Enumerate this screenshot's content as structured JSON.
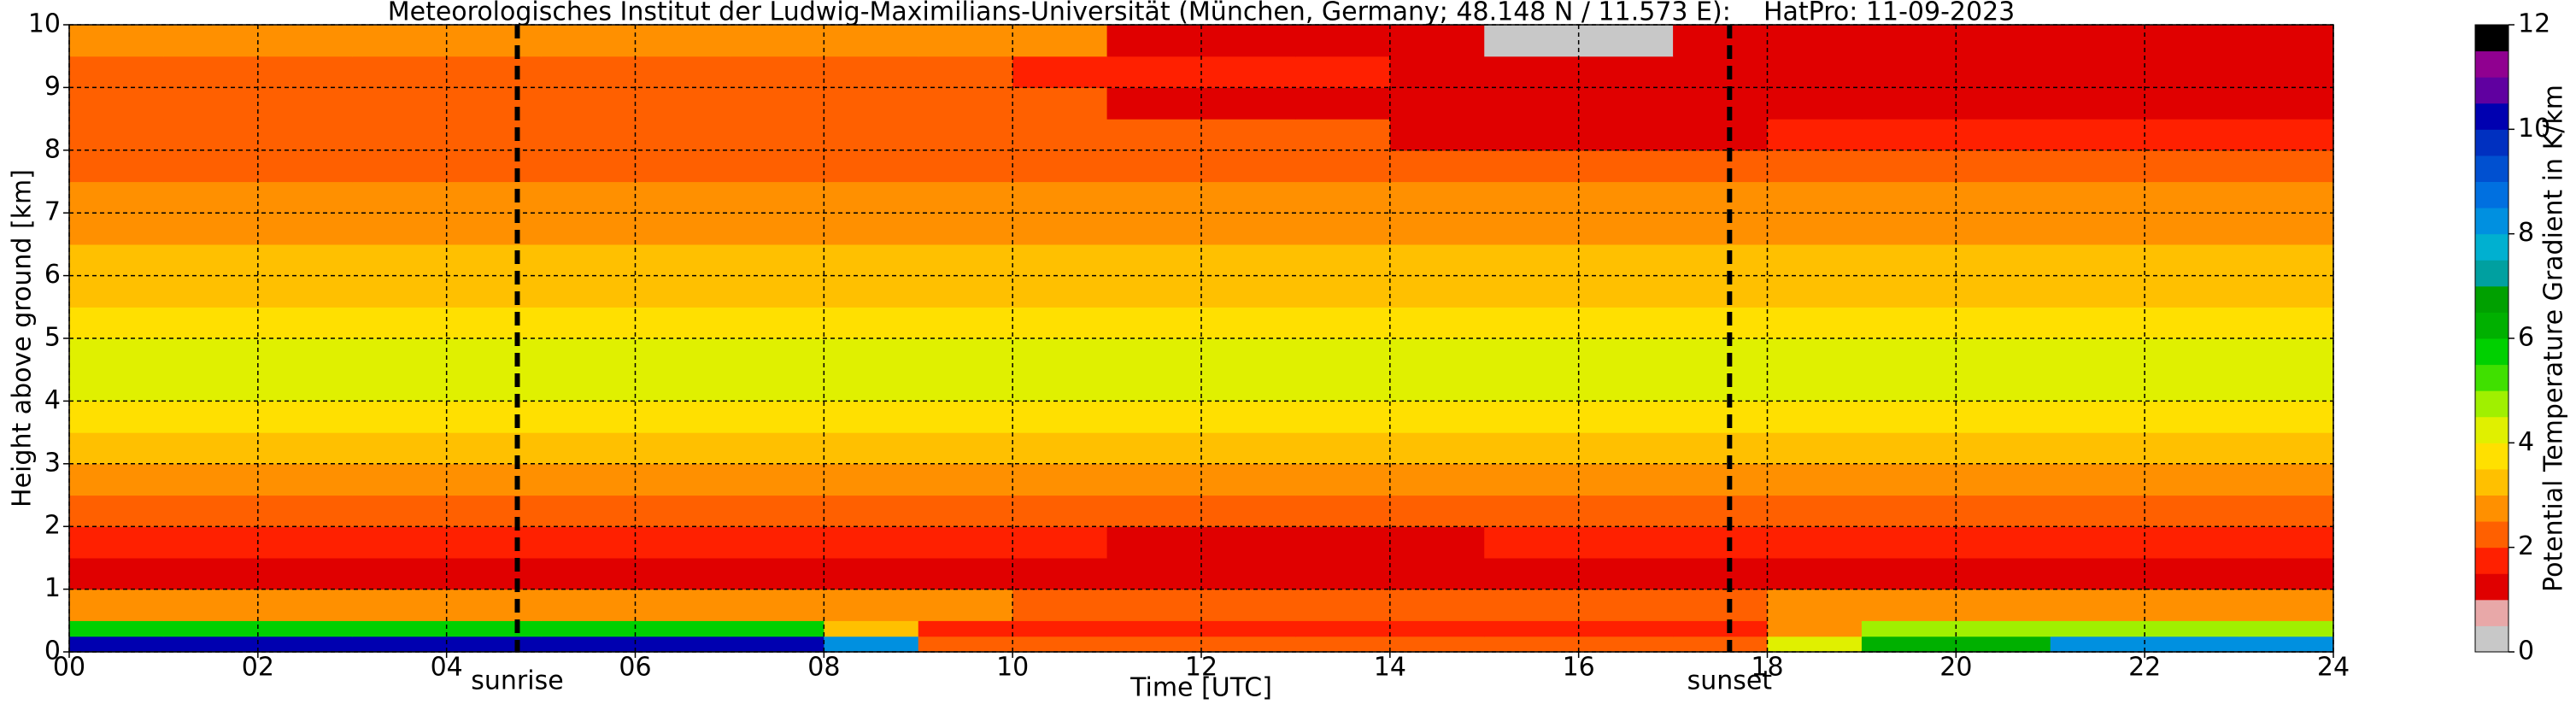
{
  "chart_data": {
    "type": "heatmap",
    "title": "Meteorologisches Institut der Ludwig-Maximilians-Universität (München, Germany; 48.148 N / 11.573 E):    HatPro: 11-09-2023",
    "xlabel": "Time [UTC]",
    "ylabel": "Height above ground [km]",
    "xlim": [
      0,
      24
    ],
    "ylim": [
      0,
      10
    ],
    "xticks": [
      {
        "value": 0,
        "label": "00"
      },
      {
        "value": 2,
        "label": "02"
      },
      {
        "value": 4,
        "label": "04"
      },
      {
        "value": 6,
        "label": "06"
      },
      {
        "value": 8,
        "label": "08"
      },
      10,
      12,
      14,
      16,
      18,
      20,
      22,
      24
    ],
    "yticks": [
      0,
      1,
      2,
      3,
      4,
      5,
      6,
      7,
      8,
      9,
      10
    ],
    "grid": true,
    "x_edges": [
      0,
      1,
      2,
      3,
      4,
      5,
      6,
      7,
      8,
      9,
      10,
      11,
      12,
      13,
      14,
      15,
      16,
      17,
      18,
      19,
      20,
      21,
      22,
      23,
      24
    ],
    "y_edges": [
      0,
      0.25,
      0.5,
      1,
      1.5,
      2,
      2.5,
      3,
      3.5,
      4,
      4.5,
      5,
      5.5,
      6,
      6.5,
      7,
      7.5,
      8,
      8.5,
      9,
      9.5,
      10
    ],
    "z": [
      [
        10,
        10,
        10,
        10,
        10,
        10,
        10,
        10,
        8,
        2,
        2,
        2,
        2,
        2,
        2,
        2,
        2,
        2,
        4,
        6,
        6,
        8,
        8,
        8
      ],
      [
        5.5,
        5.5,
        5.5,
        5.5,
        5.5,
        5.5,
        5.5,
        5.5,
        3,
        1.5,
        1.5,
        1.5,
        1.5,
        1.5,
        1.5,
        1.5,
        1.5,
        1.5,
        2.5,
        4.5,
        4.5,
        4.5,
        4.5,
        4.5
      ],
      [
        2.5,
        2.5,
        2.5,
        2.5,
        2.5,
        2.5,
        2.5,
        2.5,
        2.5,
        2.5,
        2,
        2,
        2,
        2,
        2,
        2,
        2,
        2,
        2.5,
        2.5,
        2.5,
        2.5,
        2.5,
        2.5
      ],
      [
        1.3,
        1.3,
        1.3,
        1.3,
        1.3,
        1.3,
        1.3,
        1.3,
        1.3,
        1,
        1,
        1,
        1,
        1,
        1,
        1,
        1,
        1,
        1.3,
        1.3,
        1.3,
        1.3,
        1.3,
        1.3
      ],
      [
        1.7,
        1.7,
        1.7,
        1.7,
        1.7,
        1.7,
        1.7,
        1.7,
        1.7,
        1.5,
        1.5,
        1.1,
        1.1,
        1.1,
        1.1,
        1.5,
        1.5,
        1.5,
        1.7,
        1.7,
        1.7,
        1.7,
        1.7,
        1.7
      ],
      [
        2.2,
        2.2,
        2.2,
        2.2,
        2.2,
        2.2,
        2.2,
        2.2,
        2.2,
        2.2,
        2.2,
        2.2,
        2.2,
        2.2,
        2.2,
        2.2,
        2.2,
        2.2,
        2.2,
        2.2,
        2.2,
        2.2,
        2.2,
        2.2
      ],
      [
        2.8,
        2.8,
        2.8,
        2.8,
        2.8,
        2.8,
        2.8,
        2.8,
        2.8,
        2.8,
        2.8,
        2.8,
        2.8,
        2.8,
        2.8,
        2.8,
        2.8,
        2.8,
        2.8,
        2.8,
        2.8,
        2.8,
        2.8,
        2.8
      ],
      [
        3.3,
        3.3,
        3.3,
        3.3,
        3.3,
        3.3,
        3.3,
        3.3,
        3.3,
        3.3,
        3.3,
        3.3,
        3.3,
        3.3,
        3.3,
        3.3,
        3.3,
        3.3,
        3.3,
        3.3,
        3.3,
        3.3,
        3.3,
        3.3
      ],
      [
        3.8,
        3.8,
        3.8,
        3.8,
        3.8,
        3.8,
        3.8,
        3.8,
        3.8,
        3.8,
        3.8,
        3.8,
        3.8,
        3.8,
        3.8,
        3.8,
        3.8,
        3.8,
        3.8,
        3.8,
        3.8,
        3.8,
        3.8,
        3.8
      ],
      [
        4.2,
        4.2,
        4.2,
        4.2,
        4.2,
        4.2,
        4.2,
        4.2,
        4.2,
        4.2,
        4.2,
        4.2,
        4.2,
        4.2,
        4.2,
        4.2,
        4.2,
        4.2,
        4.2,
        4.2,
        4.2,
        4.2,
        4.2,
        4.2
      ],
      [
        4.2,
        4.2,
        4.2,
        4.2,
        4.2,
        4.2,
        4.2,
        4.2,
        4.2,
        4.2,
        4.2,
        4.2,
        4.2,
        4.2,
        4.2,
        4.2,
        4.2,
        4.2,
        4.2,
        4.2,
        4.2,
        4.2,
        4.2,
        4.2
      ],
      [
        3.9,
        3.9,
        3.9,
        3.9,
        3.9,
        3.9,
        3.9,
        3.9,
        3.9,
        3.9,
        3.9,
        3.9,
        3.9,
        3.9,
        3.9,
        3.9,
        3.9,
        3.9,
        3.9,
        3.9,
        3.9,
        3.9,
        3.9,
        3.9
      ],
      [
        3.4,
        3.4,
        3.4,
        3.4,
        3.4,
        3.4,
        3.4,
        3.4,
        3.4,
        3.4,
        3.4,
        3.4,
        3.4,
        3.4,
        3.4,
        3.4,
        3.4,
        3.4,
        3.4,
        3.4,
        3.4,
        3.4,
        3.4,
        3.4
      ],
      [
        3,
        3,
        3,
        3,
        3,
        3,
        3,
        3,
        3,
        3,
        3,
        3,
        3,
        3,
        3,
        3,
        3,
        3,
        3,
        3,
        3,
        3,
        3,
        3
      ],
      [
        2.8,
        2.8,
        2.8,
        2.8,
        2.8,
        2.8,
        2.8,
        2.8,
        2.8,
        2.8,
        2.8,
        2.8,
        2.8,
        2.8,
        2.8,
        2.8,
        2.8,
        2.8,
        2.8,
        2.8,
        2.8,
        2.8,
        2.8,
        2.8
      ],
      [
        2.7,
        2.7,
        2.7,
        2.7,
        2.7,
        2.7,
        2.7,
        2.7,
        2.7,
        2.7,
        2.7,
        2.7,
        2.7,
        2.7,
        2.7,
        2.7,
        2.7,
        2.7,
        2.7,
        2.7,
        2.7,
        2.7,
        2.7,
        2.7
      ],
      [
        2.4,
        2.4,
        2.4,
        2.4,
        2.4,
        2.4,
        2.4,
        2.4,
        2.4,
        2.4,
        2.4,
        2.4,
        2.4,
        2.4,
        2.4,
        2.4,
        2.4,
        2.4,
        2.4,
        2.4,
        2.4,
        2.4,
        2.4,
        2.4
      ],
      [
        2,
        2,
        2,
        2,
        2,
        2,
        2,
        2,
        2,
        2,
        2,
        2,
        2,
        2,
        1.3,
        1.3,
        1.3,
        1.3,
        1.5,
        1.5,
        1.5,
        1.5,
        1.5,
        1.5
      ],
      [
        2,
        2,
        2,
        2,
        2,
        2,
        2,
        2,
        2,
        2,
        2,
        1.2,
        1.2,
        1.2,
        1.2,
        1.2,
        1.2,
        1.2,
        1.2,
        1.2,
        1.2,
        1.2,
        1.2,
        1.2
      ],
      [
        2.3,
        2.3,
        2.3,
        2.3,
        2.3,
        2.3,
        2.3,
        2.3,
        2.3,
        2.3,
        1.5,
        1.5,
        1.5,
        1.5,
        1,
        1,
        1,
        1,
        1,
        1,
        1,
        1,
        1,
        1
      ],
      [
        2.5,
        2.5,
        2.5,
        2.5,
        2.5,
        2.5,
        2.5,
        2.5,
        2.5,
        2.5,
        2.5,
        1,
        1,
        1,
        1,
        0.3,
        0.3,
        1,
        1.2,
        1.2,
        1.2,
        1.2,
        1.2,
        1.2
      ]
    ],
    "clim": [
      0,
      12
    ],
    "cticks": [
      0,
      2,
      4,
      6,
      8,
      10,
      12
    ],
    "clabel": "Potential Temperature Gradient in K/km",
    "colors": [
      "#c8c8c8",
      "#e8a8a8",
      "#e00000",
      "#ff2000",
      "#ff6000",
      "#ff9000",
      "#ffc000",
      "#ffe000",
      "#e0f000",
      "#a0f000",
      "#40e000",
      "#00d000",
      "#00b000",
      "#00a000",
      "#00a0a0",
      "#00b0d0",
      "#0090e0",
      "#0070e0",
      "#0050d0",
      "#0030c0",
      "#0000b0",
      "#6000a0",
      "#900090",
      "#000000"
    ],
    "annotations": [
      {
        "x": 4.75,
        "label": "sunrise"
      },
      {
        "x": 17.6,
        "label": "sunset"
      }
    ]
  }
}
